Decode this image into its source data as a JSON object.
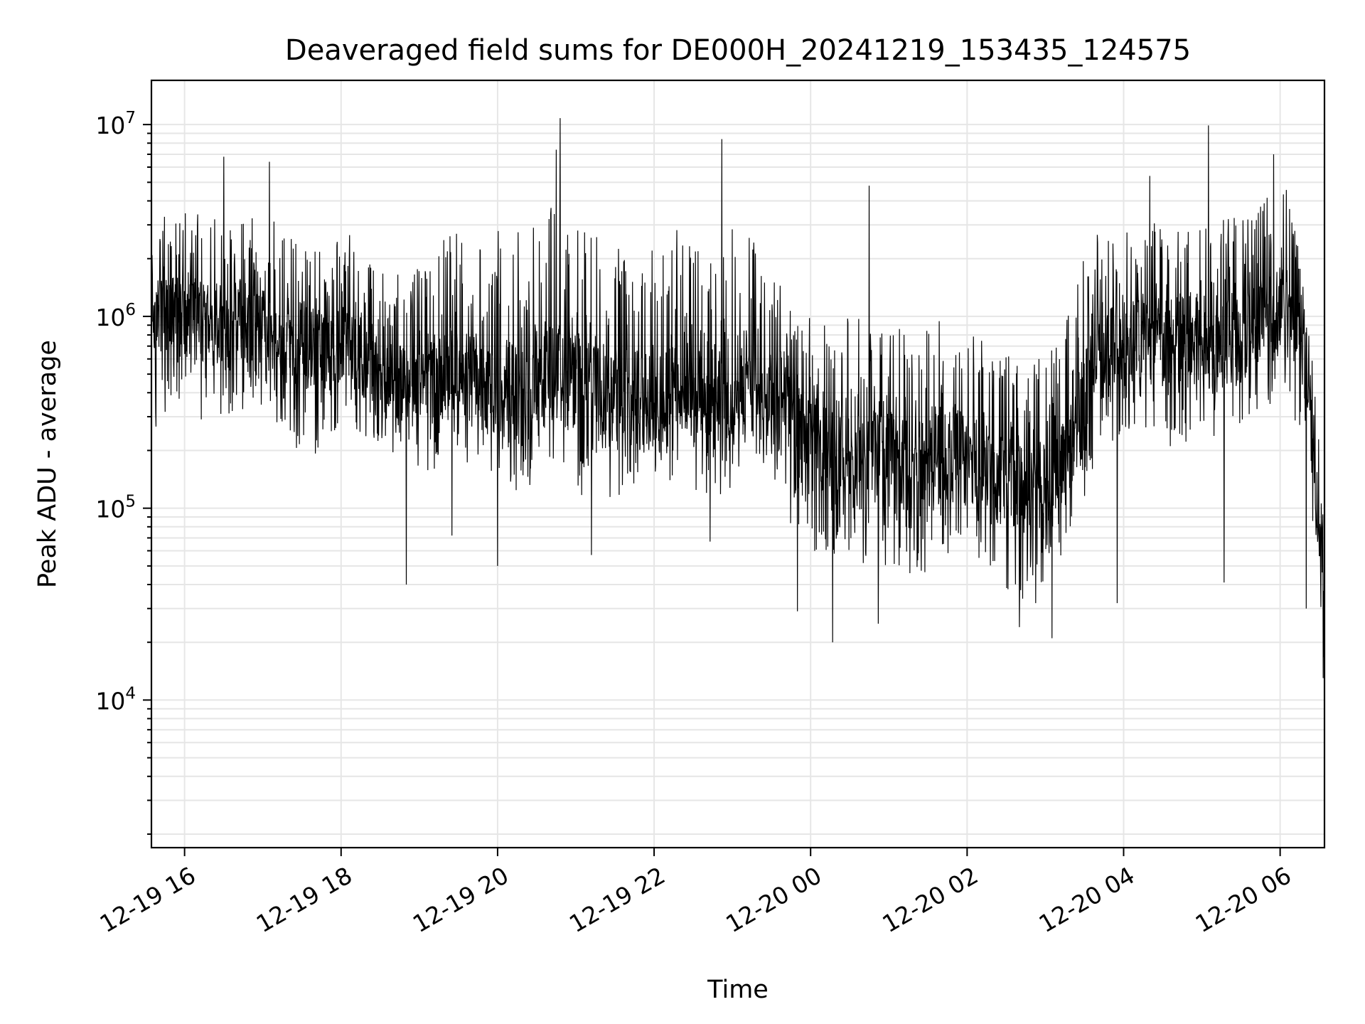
{
  "chart_data": {
    "type": "line",
    "title": "Deaveraged field sums for DE000H_20241219_153435_124575",
    "xlabel": "Time",
    "ylabel": "Peak ADU - average",
    "yscale": "log",
    "ylim": [
      1700,
      17000000
    ],
    "xlim": [
      "2024-12-19T15:34:35",
      "2024-12-20T06:34:00"
    ],
    "grid": true,
    "line_color": "#000000",
    "x_ticks": [
      {
        "value": "2024-12-19T16:00",
        "label": "12-19 16"
      },
      {
        "value": "2024-12-19T18:00",
        "label": "12-19 18"
      },
      {
        "value": "2024-12-19T20:00",
        "label": "12-19 20"
      },
      {
        "value": "2024-12-19T22:00",
        "label": "12-19 22"
      },
      {
        "value": "2024-12-20T00:00",
        "label": "12-20 00"
      },
      {
        "value": "2024-12-20T02:00",
        "label": "12-20 02"
      },
      {
        "value": "2024-12-20T04:00",
        "label": "12-20 04"
      },
      {
        "value": "2024-12-20T06:00",
        "label": "12-20 06"
      }
    ],
    "y_ticks": [
      {
        "value": 10000,
        "base": "10",
        "exp": "4"
      },
      {
        "value": 100000,
        "base": "10",
        "exp": "5"
      },
      {
        "value": 1000000,
        "base": "10",
        "exp": "6"
      },
      {
        "value": 10000000,
        "base": "10",
        "exp": "7"
      }
    ],
    "series": [
      {
        "x": [
          "2024-12-19T15:35",
          "2024-12-19T15:50",
          "2024-12-19T16:05",
          "2024-12-19T16:20",
          "2024-12-19T16:35",
          "2024-12-19T16:50",
          "2024-12-19T17:05",
          "2024-12-19T17:20",
          "2024-12-19T17:35",
          "2024-12-19T17:50",
          "2024-12-19T18:05",
          "2024-12-19T18:20",
          "2024-12-19T18:35",
          "2024-12-19T18:50",
          "2024-12-19T19:05",
          "2024-12-19T19:20",
          "2024-12-19T19:35",
          "2024-12-19T19:50",
          "2024-12-19T20:05",
          "2024-12-19T20:20",
          "2024-12-19T20:35",
          "2024-12-19T20:50",
          "2024-12-19T21:05",
          "2024-12-19T21:20",
          "2024-12-19T21:35",
          "2024-12-19T21:50",
          "2024-12-19T22:05",
          "2024-12-19T22:20",
          "2024-12-19T22:35",
          "2024-12-19T22:50",
          "2024-12-19T23:05",
          "2024-12-19T23:20",
          "2024-12-19T23:35",
          "2024-12-19T23:50",
          "2024-12-20T00:05",
          "2024-12-20T00:20",
          "2024-12-20T00:35",
          "2024-12-20T00:50",
          "2024-12-20T01:05",
          "2024-12-20T01:20",
          "2024-12-20T01:35",
          "2024-12-20T01:50",
          "2024-12-20T02:05",
          "2024-12-20T02:20",
          "2024-12-20T02:35",
          "2024-12-20T02:50",
          "2024-12-20T03:05",
          "2024-12-20T03:20",
          "2024-12-20T03:35",
          "2024-12-20T03:50",
          "2024-12-20T04:05",
          "2024-12-20T04:20",
          "2024-12-20T04:35",
          "2024-12-20T04:50",
          "2024-12-20T05:05",
          "2024-12-20T05:20",
          "2024-12-20T05:35",
          "2024-12-20T05:50",
          "2024-12-20T06:05",
          "2024-12-20T06:20",
          "2024-12-20T06:34"
        ],
        "median": [
          1000000,
          1000000,
          1000000,
          900000,
          850000,
          900000,
          800000,
          750000,
          700000,
          650000,
          700000,
          550000,
          450000,
          450000,
          450000,
          500000,
          500000,
          400000,
          400000,
          400000,
          500000,
          500000,
          400000,
          350000,
          350000,
          350000,
          400000,
          400000,
          400000,
          400000,
          450000,
          400000,
          300000,
          250000,
          200000,
          200000,
          180000,
          180000,
          170000,
          150000,
          200000,
          200000,
          180000,
          150000,
          140000,
          120000,
          150000,
          200000,
          500000,
          700000,
          800000,
          800000,
          700000,
          750000,
          700000,
          700000,
          800000,
          1000000,
          1200000,
          600000,
          30000
        ],
        "low": [
          200000,
          300000,
          250000,
          250000,
          250000,
          300000,
          250000,
          200000,
          150000,
          200000,
          250000,
          200000,
          150000,
          150000,
          120000,
          150000,
          150000,
          150000,
          120000,
          100000,
          150000,
          150000,
          100000,
          100000,
          100000,
          100000,
          120000,
          120000,
          100000,
          100000,
          120000,
          150000,
          100000,
          60000,
          50000,
          50000,
          45000,
          40000,
          35000,
          40000,
          40000,
          50000,
          50000,
          40000,
          30000,
          25000,
          40000,
          60000,
          120000,
          180000,
          200000,
          200000,
          150000,
          150000,
          150000,
          200000,
          250000,
          300000,
          350000,
          150000,
          12000
        ],
        "high": [
          4000000,
          4500000,
          4500000,
          4000000,
          4500000,
          4000000,
          5000000,
          4000000,
          3500000,
          3000000,
          3500000,
          2500000,
          2200000,
          2000000,
          2500000,
          3500000,
          4000000,
          3000000,
          4500000,
          4000000,
          6000000,
          5000000,
          4500000,
          4000000,
          3500000,
          4000000,
          4500000,
          4000000,
          4000000,
          4000000,
          4500000,
          3500000,
          2500000,
          1500000,
          1200000,
          1200000,
          1500000,
          1100000,
          1200000,
          1000000,
          1400000,
          1500000,
          1200000,
          900000,
          800000,
          800000,
          1000000,
          2000000,
          3500000,
          4000000,
          4000000,
          4500000,
          4000000,
          5000000,
          4500000,
          4500000,
          5000000,
          5500000,
          6000000,
          3000000,
          100000
        ],
        "spikes": [
          {
            "x": "2024-12-19T16:30",
            "y": 6800000
          },
          {
            "x": "2024-12-19T17:05",
            "y": 6400000
          },
          {
            "x": "2024-12-19T18:50",
            "y": 40000
          },
          {
            "x": "2024-12-19T19:25",
            "y": 72000
          },
          {
            "x": "2024-12-19T20:00",
            "y": 50000
          },
          {
            "x": "2024-12-19T20:45",
            "y": 7400000
          },
          {
            "x": "2024-12-19T20:48",
            "y": 10800000
          },
          {
            "x": "2024-12-19T21:12",
            "y": 57000
          },
          {
            "x": "2024-12-19T22:52",
            "y": 8400000
          },
          {
            "x": "2024-12-19T22:43",
            "y": 67000
          },
          {
            "x": "2024-12-19T23:50",
            "y": 29000
          },
          {
            "x": "2024-12-20T00:17",
            "y": 20000
          },
          {
            "x": "2024-12-20T00:45",
            "y": 4800000
          },
          {
            "x": "2024-12-20T00:52",
            "y": 25000
          },
          {
            "x": "2024-12-20T02:40",
            "y": 24000
          },
          {
            "x": "2024-12-20T03:05",
            "y": 21000
          },
          {
            "x": "2024-12-20T03:55",
            "y": 32000
          },
          {
            "x": "2024-12-20T04:20",
            "y": 5400000
          },
          {
            "x": "2024-12-20T05:05",
            "y": 9900000
          },
          {
            "x": "2024-12-20T05:17",
            "y": 41000
          },
          {
            "x": "2024-12-20T05:55",
            "y": 7000000
          },
          {
            "x": "2024-12-20T06:20",
            "y": 30000
          },
          {
            "x": "2024-12-20T06:33",
            "y": 13000
          }
        ]
      }
    ]
  }
}
